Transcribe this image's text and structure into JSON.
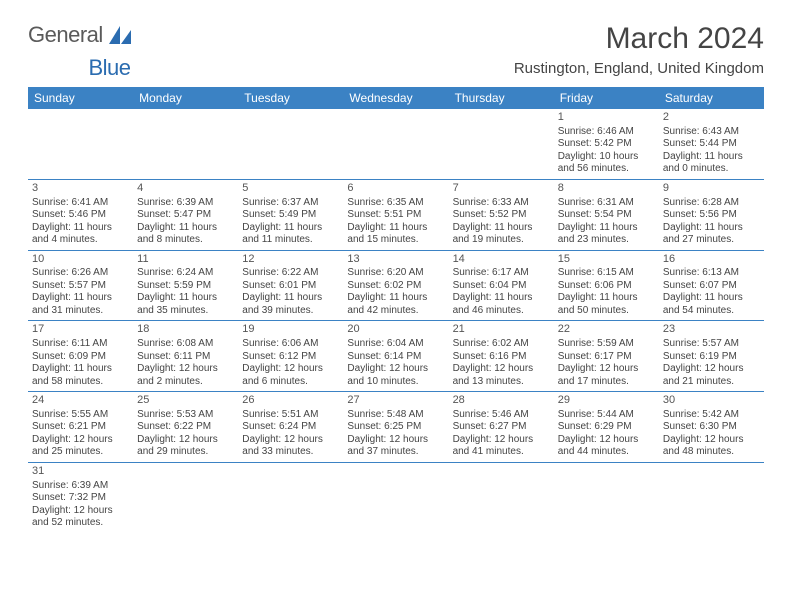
{
  "brand": {
    "word1": "General",
    "word2": "Blue"
  },
  "title": "March 2024",
  "location": "Rustington, England, United Kingdom",
  "headerColor": "#3b82c4",
  "columns": [
    "Sunday",
    "Monday",
    "Tuesday",
    "Wednesday",
    "Thursday",
    "Friday",
    "Saturday"
  ],
  "startOffset": 5,
  "days": [
    {
      "n": 1,
      "sr": "6:46 AM",
      "ss": "5:42 PM",
      "dh": 10,
      "dm": 56
    },
    {
      "n": 2,
      "sr": "6:43 AM",
      "ss": "5:44 PM",
      "dh": 11,
      "dm": 0
    },
    {
      "n": 3,
      "sr": "6:41 AM",
      "ss": "5:46 PM",
      "dh": 11,
      "dm": 4
    },
    {
      "n": 4,
      "sr": "6:39 AM",
      "ss": "5:47 PM",
      "dh": 11,
      "dm": 8
    },
    {
      "n": 5,
      "sr": "6:37 AM",
      "ss": "5:49 PM",
      "dh": 11,
      "dm": 11
    },
    {
      "n": 6,
      "sr": "6:35 AM",
      "ss": "5:51 PM",
      "dh": 11,
      "dm": 15
    },
    {
      "n": 7,
      "sr": "6:33 AM",
      "ss": "5:52 PM",
      "dh": 11,
      "dm": 19
    },
    {
      "n": 8,
      "sr": "6:31 AM",
      "ss": "5:54 PM",
      "dh": 11,
      "dm": 23
    },
    {
      "n": 9,
      "sr": "6:28 AM",
      "ss": "5:56 PM",
      "dh": 11,
      "dm": 27
    },
    {
      "n": 10,
      "sr": "6:26 AM",
      "ss": "5:57 PM",
      "dh": 11,
      "dm": 31
    },
    {
      "n": 11,
      "sr": "6:24 AM",
      "ss": "5:59 PM",
      "dh": 11,
      "dm": 35
    },
    {
      "n": 12,
      "sr": "6:22 AM",
      "ss": "6:01 PM",
      "dh": 11,
      "dm": 39
    },
    {
      "n": 13,
      "sr": "6:20 AM",
      "ss": "6:02 PM",
      "dh": 11,
      "dm": 42
    },
    {
      "n": 14,
      "sr": "6:17 AM",
      "ss": "6:04 PM",
      "dh": 11,
      "dm": 46
    },
    {
      "n": 15,
      "sr": "6:15 AM",
      "ss": "6:06 PM",
      "dh": 11,
      "dm": 50
    },
    {
      "n": 16,
      "sr": "6:13 AM",
      "ss": "6:07 PM",
      "dh": 11,
      "dm": 54
    },
    {
      "n": 17,
      "sr": "6:11 AM",
      "ss": "6:09 PM",
      "dh": 11,
      "dm": 58
    },
    {
      "n": 18,
      "sr": "6:08 AM",
      "ss": "6:11 PM",
      "dh": 12,
      "dm": 2
    },
    {
      "n": 19,
      "sr": "6:06 AM",
      "ss": "6:12 PM",
      "dh": 12,
      "dm": 6
    },
    {
      "n": 20,
      "sr": "6:04 AM",
      "ss": "6:14 PM",
      "dh": 12,
      "dm": 10
    },
    {
      "n": 21,
      "sr": "6:02 AM",
      "ss": "6:16 PM",
      "dh": 12,
      "dm": 13
    },
    {
      "n": 22,
      "sr": "5:59 AM",
      "ss": "6:17 PM",
      "dh": 12,
      "dm": 17
    },
    {
      "n": 23,
      "sr": "5:57 AM",
      "ss": "6:19 PM",
      "dh": 12,
      "dm": 21
    },
    {
      "n": 24,
      "sr": "5:55 AM",
      "ss": "6:21 PM",
      "dh": 12,
      "dm": 25
    },
    {
      "n": 25,
      "sr": "5:53 AM",
      "ss": "6:22 PM",
      "dh": 12,
      "dm": 29
    },
    {
      "n": 26,
      "sr": "5:51 AM",
      "ss": "6:24 PM",
      "dh": 12,
      "dm": 33
    },
    {
      "n": 27,
      "sr": "5:48 AM",
      "ss": "6:25 PM",
      "dh": 12,
      "dm": 37
    },
    {
      "n": 28,
      "sr": "5:46 AM",
      "ss": "6:27 PM",
      "dh": 12,
      "dm": 41
    },
    {
      "n": 29,
      "sr": "5:44 AM",
      "ss": "6:29 PM",
      "dh": 12,
      "dm": 44
    },
    {
      "n": 30,
      "sr": "5:42 AM",
      "ss": "6:30 PM",
      "dh": 12,
      "dm": 48
    },
    {
      "n": 31,
      "sr": "6:39 AM",
      "ss": "7:32 PM",
      "dh": 12,
      "dm": 52
    }
  ],
  "labels": {
    "sunrise": "Sunrise: ",
    "sunset": "Sunset: ",
    "daylight": "Daylight: ",
    "hours": " hours",
    "and": "and ",
    "minutes": " minutes."
  }
}
